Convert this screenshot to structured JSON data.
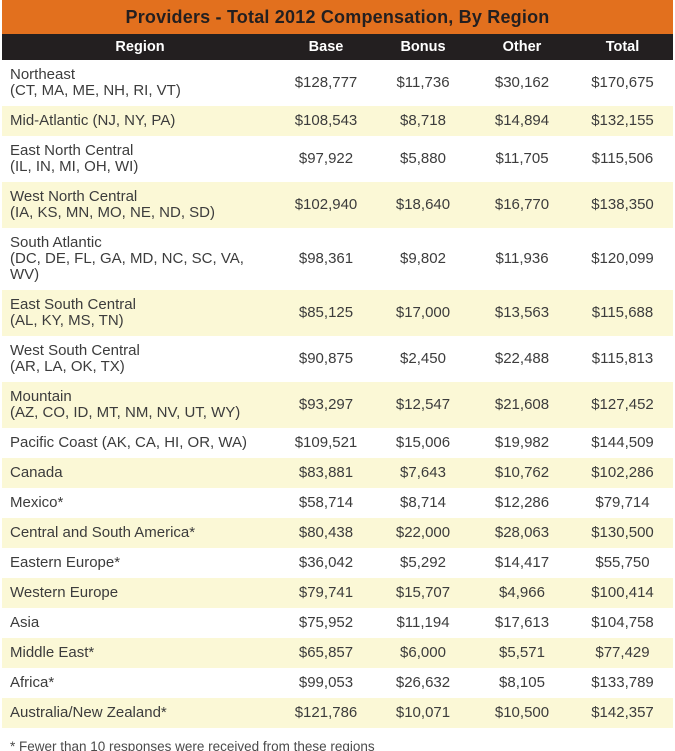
{
  "title": "Providers - Total 2012 Compensation, By Region",
  "header": {
    "region": "Region",
    "base": "Base",
    "bonus": "Bonus",
    "other": "Other",
    "total": "Total"
  },
  "rows": [
    {
      "region": "Northeast",
      "states": "(CT, MA, ME, NH, RI, VT)",
      "base": "$128,777",
      "bonus": "$11,736",
      "other": "$30,162",
      "total": "$170,675"
    },
    {
      "region": "Mid-Atlantic (NJ, NY, PA)",
      "states": "",
      "base": "$108,543",
      "bonus": "$8,718",
      "other": "$14,894",
      "total": "$132,155"
    },
    {
      "region": "East North Central",
      "states": "(IL, IN, MI, OH, WI)",
      "base": "$97,922",
      "bonus": "$5,880",
      "other": "$11,705",
      "total": "$115,506"
    },
    {
      "region": "West North Central",
      "states": "(IA, KS, MN, MO, NE, ND, SD)",
      "base": "$102,940",
      "bonus": "$18,640",
      "other": "$16,770",
      "total": "$138,350"
    },
    {
      "region": "South Atlantic",
      "states": "(DC, DE, FL, GA, MD, NC, SC, VA, WV)",
      "base": "$98,361",
      "bonus": "$9,802",
      "other": "$11,936",
      "total": "$120,099"
    },
    {
      "region": "East South Central",
      "states": "(AL, KY, MS, TN)",
      "base": "$85,125",
      "bonus": "$17,000",
      "other": "$13,563",
      "total": "$115,688"
    },
    {
      "region": "West South Central",
      "states": "(AR, LA, OK, TX)",
      "base": "$90,875",
      "bonus": "$2,450",
      "other": "$22,488",
      "total": "$115,813"
    },
    {
      "region": "Mountain",
      "states": "(AZ, CO, ID, MT, NM, NV, UT, WY)",
      "base": "$93,297",
      "bonus": "$12,547",
      "other": "$21,608",
      "total": "$127,452"
    },
    {
      "region": "Pacific Coast (AK, CA, HI, OR, WA)",
      "states": "",
      "base": "$109,521",
      "bonus": "$15,006",
      "other": "$19,982",
      "total": "$144,509"
    },
    {
      "region": "Canada",
      "states": "",
      "base": "$83,881",
      "bonus": "$7,643",
      "other": "$10,762",
      "total": "$102,286"
    },
    {
      "region": "Mexico*",
      "states": "",
      "base": "$58,714",
      "bonus": "$8,714",
      "other": "$12,286",
      "total": "$79,714"
    },
    {
      "region": "Central and South America*",
      "states": "",
      "base": "$80,438",
      "bonus": "$22,000",
      "other": "$28,063",
      "total": "$130,500"
    },
    {
      "region": "Eastern Europe*",
      "states": "",
      "base": "$36,042",
      "bonus": "$5,292",
      "other": "$14,417",
      "total": "$55,750"
    },
    {
      "region": "Western Europe",
      "states": "",
      "base": "$79,741",
      "bonus": "$15,707",
      "other": "$4,966",
      "total": "$100,414"
    },
    {
      "region": "Asia",
      "states": "",
      "base": "$75,952",
      "bonus": "$11,194",
      "other": "$17,613",
      "total": "$104,758"
    },
    {
      "region": "Middle East*",
      "states": "",
      "base": "$65,857",
      "bonus": "$6,000",
      "other": "$5,571",
      "total": "$77,429"
    },
    {
      "region": "Africa*",
      "states": "",
      "base": "$99,053",
      "bonus": "$26,632",
      "other": "$8,105",
      "total": "$133,789"
    },
    {
      "region": "Australia/New Zealand*",
      "states": "",
      "base": "$121,786",
      "bonus": "$10,071",
      "other": "$10,500",
      "total": "$142,357"
    }
  ],
  "footnote": "* Fewer than 10 responses were received from these regions",
  "colors": {
    "title_bg": "#E2701E",
    "title_text": "#231F20",
    "header_bg": "#231F20",
    "header_text": "#FFFFFF",
    "row_alt_bg": "#FBF8D6",
    "body_text": "#3C3C3C",
    "footnote_text": "#4A4A4A"
  },
  "chart_data": {
    "type": "table",
    "title": "Providers - Total 2012 Compensation, By Region",
    "columns": [
      "Region",
      "Base",
      "Bonus",
      "Other",
      "Total"
    ],
    "rows": [
      [
        "Northeast (CT, MA, ME, NH, RI, VT)",
        128777,
        11736,
        30162,
        170675
      ],
      [
        "Mid-Atlantic (NJ, NY, PA)",
        108543,
        8718,
        14894,
        132155
      ],
      [
        "East North Central (IL, IN, MI, OH, WI)",
        97922,
        5880,
        11705,
        115506
      ],
      [
        "West North Central (IA, KS, MN, MO, NE, ND, SD)",
        102940,
        18640,
        16770,
        138350
      ],
      [
        "South Atlantic (DC, DE, FL, GA, MD, NC, SC, VA, WV)",
        98361,
        9802,
        11936,
        120099
      ],
      [
        "East South Central (AL, KY, MS, TN)",
        85125,
        17000,
        13563,
        115688
      ],
      [
        "West South Central (AR, LA, OK, TX)",
        90875,
        2450,
        22488,
        115813
      ],
      [
        "Mountain (AZ, CO, ID, MT, NM, NV, UT, WY)",
        93297,
        12547,
        21608,
        127452
      ],
      [
        "Pacific Coast (AK, CA, HI, OR, WA)",
        109521,
        15006,
        19982,
        144509
      ],
      [
        "Canada",
        83881,
        7643,
        10762,
        102286
      ],
      [
        "Mexico*",
        58714,
        8714,
        12286,
        79714
      ],
      [
        "Central and South America*",
        80438,
        22000,
        28063,
        130500
      ],
      [
        "Eastern Europe*",
        36042,
        5292,
        14417,
        55750
      ],
      [
        "Western Europe",
        79741,
        15707,
        4966,
        100414
      ],
      [
        "Asia",
        75952,
        11194,
        17613,
        104758
      ],
      [
        "Middle East*",
        65857,
        6000,
        5571,
        77429
      ],
      [
        "Africa*",
        99053,
        26632,
        8105,
        133789
      ],
      [
        "Australia/New Zealand*",
        121786,
        10071,
        10500,
        142357
      ]
    ],
    "footnote": "* Fewer than 10 responses were received from these regions",
    "layout": {
      "alternating_row_shading": true,
      "grid": false,
      "value_alignment": "center"
    }
  }
}
